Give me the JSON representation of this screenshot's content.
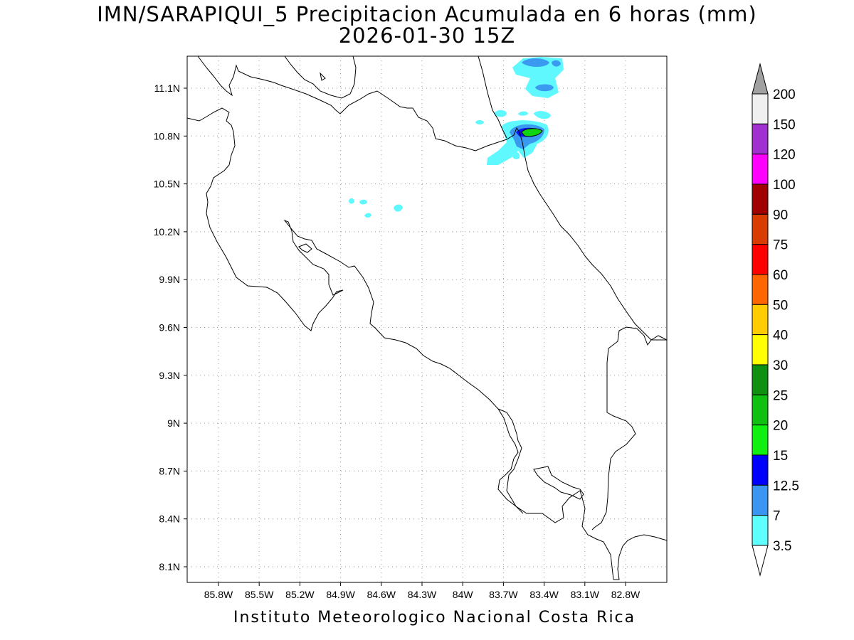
{
  "header": {
    "title_line1": "IMN/SARAPIQUI_5 Precipitacion Acumulada en 6 horas (mm)",
    "title_line2": "2026-01-30 15Z"
  },
  "map": {
    "lat_ticks": [
      "11.1N",
      "10.8N",
      "10.5N",
      "10.2N",
      "9.9N",
      "9.6N",
      "9.3N",
      "9N",
      "8.7N",
      "8.4N",
      "8.1N"
    ],
    "lon_ticks": [
      "85.8W",
      "85.5W",
      "85.2W",
      "84.9W",
      "84.6W",
      "84.3W",
      "84W",
      "83.7W",
      "83.4W",
      "83.1W",
      "82.8W"
    ],
    "grid": true,
    "precip_colors": {
      "c3_5": "#5ff8ff",
      "c7": "#3a9af0",
      "c12_5": "#0a14f0",
      "c20": "#10d410"
    }
  },
  "colorbar": {
    "levels": [
      "200",
      "150",
      "120",
      "100",
      "90",
      "75",
      "60",
      "50",
      "40",
      "30",
      "25",
      "20",
      "15",
      "12.5",
      "7",
      "3.5"
    ],
    "colors": [
      "#f0f0f0",
      "#a030d0",
      "#ff00ff",
      "#a00000",
      "#d83c00",
      "#ff0000",
      "#ff6600",
      "#ffcc00",
      "#ffff00",
      "#109010",
      "#10c010",
      "#10f010",
      "#0000ff",
      "#3a96f0",
      "#60ffff"
    ],
    "over_color": "#a0a0a0",
    "under_color": "#ffffff"
  },
  "footer": {
    "credit": "Instituto Meteorologico Nacional Costa Rica"
  }
}
